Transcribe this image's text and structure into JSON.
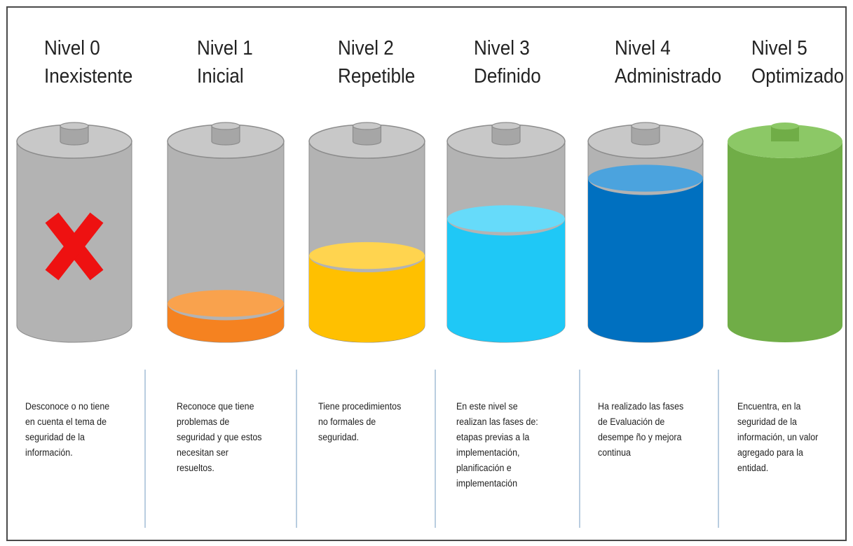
{
  "colors": {
    "empty_body": "#b3b3b3",
    "empty_top": "#c8c8c8",
    "cap": "#a6a6a6",
    "outline": "#8c8c8c",
    "cross": "#ee1111",
    "divider": "#b9cde0"
  },
  "levels": [
    {
      "id": "nivel-0",
      "title_line1": "Nivel 0",
      "title_line2": "Inexistente",
      "fill_fraction": 0,
      "fill_color": null,
      "fill_top_color": null,
      "marker": "red-cross-icon",
      "description": "Desconoce  o no tiene en cuenta el tema de seguridad de la información."
    },
    {
      "id": "nivel-1",
      "title_line1": "Nivel 1",
      "title_line2": "Inicial",
      "fill_fraction": 0.12,
      "fill_color": "#f58220",
      "fill_top_color": "#f9a24d",
      "marker": null,
      "description": "Reconoce que tiene problemas de seguridad y que estos necesitan ser resueltos."
    },
    {
      "id": "nivel-2",
      "title_line1": "Nivel 2",
      "title_line2": "Repetible",
      "fill_fraction": 0.38,
      "fill_color": "#ffc000",
      "fill_top_color": "#ffd44f",
      "marker": null,
      "description": "Tiene procedimientos no formales de seguridad."
    },
    {
      "id": "nivel-3",
      "title_line1": "Nivel 3",
      "title_line2": "Definido",
      "fill_fraction": 0.58,
      "fill_color": "#1fc8f6",
      "fill_top_color": "#66dbfa",
      "marker": null,
      "description": "En este nivel se realizan las  fases de: etapas previas a la implementación, planificación e implementación"
    },
    {
      "id": "nivel-4",
      "title_line1": "Nivel 4",
      "title_line2": "Administrado",
      "fill_fraction": 0.8,
      "fill_color": "#0070c0",
      "fill_top_color": "#4ba3de",
      "marker": null,
      "description": "Ha realizado las fases de Evaluación de desempe ño y mejora continua"
    },
    {
      "id": "nivel-5",
      "title_line1": "Nivel 5",
      "title_line2": "Optimizado",
      "fill_fraction": 1,
      "fill_color": "#70ad47",
      "fill_top_color": "#8cc866",
      "marker": null,
      "description": "Encuentra, en la seguridad de la información, un valor agregado para la entidad."
    }
  ]
}
